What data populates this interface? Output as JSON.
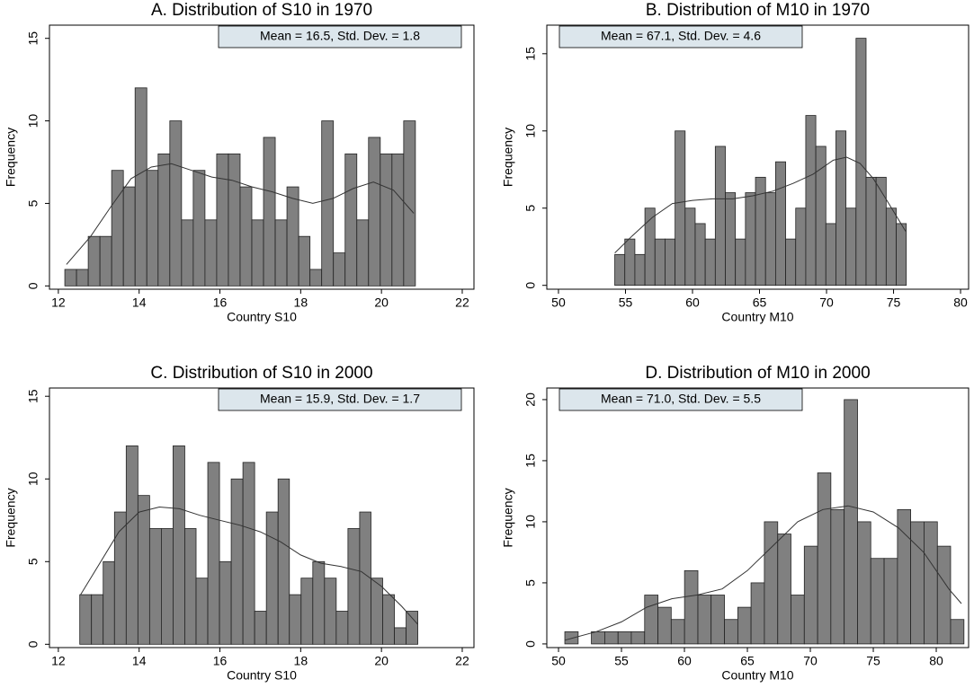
{
  "chart_data": [
    {
      "type": "histogram",
      "title": "A. Distribution of S10 in 1970",
      "annotation": "Mean = 16.5, Std. Dev. = 1.8",
      "annotation_position": "right",
      "xlabel": "Country S10",
      "ylabel": "Frequency",
      "bins": [
        12.16,
        12.45,
        12.74,
        13.03,
        13.32,
        13.61,
        13.9,
        14.19,
        14.47,
        14.76,
        15.05,
        15.34,
        15.63,
        15.92,
        16.21,
        16.5,
        16.79,
        17.08,
        17.37,
        17.66,
        17.95,
        18.23,
        18.52,
        18.81,
        19.1,
        19.39,
        19.68,
        19.97,
        20.26,
        20.55,
        20.84
      ],
      "values": [
        1,
        1,
        3,
        3,
        7,
        6,
        12,
        7,
        8,
        10,
        4,
        7,
        4,
        8,
        8,
        6,
        4,
        9,
        4,
        6,
        3,
        1,
        10,
        2,
        8,
        4,
        9,
        8,
        8,
        10
      ],
      "density": {
        "x": [
          12.2,
          12.8,
          13.3,
          13.8,
          14.3,
          14.8,
          15.3,
          15.8,
          16.3,
          16.8,
          17.3,
          17.8,
          18.3,
          18.8,
          19.3,
          19.8,
          20.3,
          20.8
        ],
        "values": [
          1.3,
          3,
          4.8,
          6.5,
          7.2,
          7.4,
          7,
          6.6,
          6.4,
          6,
          5.7,
          5.3,
          5,
          5.3,
          5.9,
          6.3,
          5.8,
          4.4
        ]
      },
      "color": "#808080",
      "line_color": "#333333",
      "annotation_color": "#dce6ec",
      "xlim": [
        11.78,
        22.29
      ],
      "ylim": [
        -0.2,
        15.8
      ],
      "xticks": [
        12,
        14,
        16,
        18,
        20,
        22
      ],
      "yticks": [
        0,
        5,
        10,
        15
      ]
    },
    {
      "type": "histogram",
      "title": "B. Distribution of M10 in 1970",
      "annotation": "Mean = 67.1, Std. Dev. = 4.6",
      "annotation_position": "left",
      "xlabel": "Country M10",
      "ylabel": "Frequency",
      "bins": [
        54.2,
        54.95,
        55.7,
        56.45,
        57.2,
        57.95,
        58.7,
        59.45,
        60.2,
        60.95,
        61.7,
        62.45,
        63.2,
        63.95,
        64.7,
        65.45,
        66.2,
        66.95,
        67.7,
        68.45,
        69.2,
        69.95,
        70.7,
        71.45,
        72.2,
        72.95,
        73.7,
        74.45,
        75.2,
        75.95
      ],
      "values": [
        2,
        3,
        2,
        5,
        3,
        3,
        10,
        5,
        4,
        3,
        9,
        6,
        3,
        6,
        7,
        6,
        8,
        3,
        5,
        11,
        9,
        4,
        10,
        5,
        16,
        7,
        7,
        5,
        4
      ],
      "density": {
        "x": [
          54.2,
          55.5,
          57,
          58.5,
          60,
          61.5,
          63,
          64.5,
          66,
          67.5,
          69,
          70.5,
          71.5,
          72.5,
          73.5,
          74.5,
          75.9
        ],
        "values": [
          2.1,
          3.2,
          4.4,
          5.3,
          5.5,
          5.6,
          5.6,
          5.8,
          6.1,
          6.6,
          7.2,
          8.1,
          8.3,
          7.9,
          6.9,
          5.5,
          3.5
        ]
      },
      "color": "#808080",
      "line_color": "#333333",
      "annotation_color": "#dce6ec",
      "xlim": [
        49.13,
        80.6
      ],
      "ylim": [
        -0.25,
        16.85
      ],
      "xticks": [
        50,
        55,
        60,
        65,
        70,
        75,
        80
      ],
      "yticks": [
        0,
        5,
        10,
        15
      ]
    },
    {
      "type": "histogram",
      "title": "C. Distribution of S10 in 2000",
      "annotation": "Mean = 15.9, Std. Dev. = 1.7",
      "annotation_position": "right",
      "xlabel": "Country S10",
      "ylabel": "Frequency",
      "bins": [
        12.53,
        12.82,
        13.11,
        13.39,
        13.68,
        13.97,
        14.26,
        14.55,
        14.84,
        15.13,
        15.41,
        15.7,
        15.99,
        16.28,
        16.57,
        16.86,
        17.15,
        17.44,
        17.72,
        18.01,
        18.3,
        18.59,
        18.88,
        19.17,
        19.46,
        19.74,
        20.03,
        20.32,
        20.61,
        20.9
      ],
      "values": [
        3,
        3,
        5,
        8,
        12,
        9,
        7,
        7,
        12,
        7,
        4,
        11,
        5,
        10,
        11,
        2,
        8,
        10,
        3,
        4,
        5,
        4,
        2,
        7,
        8,
        4,
        3,
        1,
        2
      ],
      "density": {
        "x": [
          12.55,
          13,
          13.5,
          14,
          14.5,
          15,
          15.5,
          16,
          16.5,
          17,
          17.5,
          18,
          18.5,
          19,
          19.5,
          20,
          20.5,
          20.9
        ],
        "values": [
          3,
          4.8,
          6.8,
          8,
          8.3,
          8.2,
          7.8,
          7.5,
          7.2,
          6.8,
          6.2,
          5.4,
          4.9,
          4.7,
          4.4,
          3.5,
          2.3,
          1.2
        ]
      },
      "color": "#808080",
      "line_color": "#333333",
      "annotation_color": "#dce6ec",
      "xlim": [
        11.78,
        22.29
      ],
      "ylim": [
        -0.2,
        15.5
      ],
      "xticks": [
        12,
        14,
        16,
        18,
        20,
        22
      ],
      "yticks": [
        0,
        5,
        10,
        15
      ]
    },
    {
      "type": "histogram",
      "title": "D. Distribution of M10 in 2000",
      "annotation": "Mean = 71.0, Std. Dev. = 5.5",
      "annotation_position": "left",
      "xlabel": "Country M10",
      "ylabel": "Frequency",
      "bins": [
        50.5,
        51.56,
        52.61,
        53.67,
        54.73,
        55.78,
        56.84,
        57.9,
        58.95,
        60.01,
        61.07,
        62.12,
        63.18,
        64.24,
        65.29,
        66.35,
        67.41,
        68.46,
        69.52,
        70.58,
        71.63,
        72.69,
        73.75,
        74.8,
        75.86,
        76.92,
        77.97,
        79.03,
        80.09,
        81.14,
        82.2
      ],
      "values": [
        1,
        0,
        1,
        1,
        1,
        1,
        4,
        3,
        2,
        6,
        4,
        4,
        2,
        3,
        5,
        10,
        9,
        4,
        8,
        14,
        11,
        20,
        10,
        7,
        7,
        11,
        10,
        10,
        8,
        2
      ],
      "density": {
        "x": [
          50.5,
          53,
          55,
          57,
          59,
          61,
          63,
          65,
          67,
          69,
          71,
          73,
          75,
          77,
          79,
          81,
          82
        ],
        "values": [
          0.3,
          1,
          1.8,
          3,
          3.7,
          4,
          4.5,
          6,
          8,
          10,
          11,
          11.3,
          10.8,
          9.5,
          7.5,
          4.5,
          3.3
        ]
      },
      "color": "#808080",
      "line_color": "#333333",
      "annotation_color": "#dce6ec",
      "xlim": [
        49.07,
        82.57
      ],
      "ylim": [
        -0.3,
        20.95
      ],
      "xticks": [
        50,
        55,
        60,
        65,
        70,
        75,
        80
      ],
      "yticks": [
        0,
        5,
        10,
        15,
        20
      ]
    }
  ]
}
